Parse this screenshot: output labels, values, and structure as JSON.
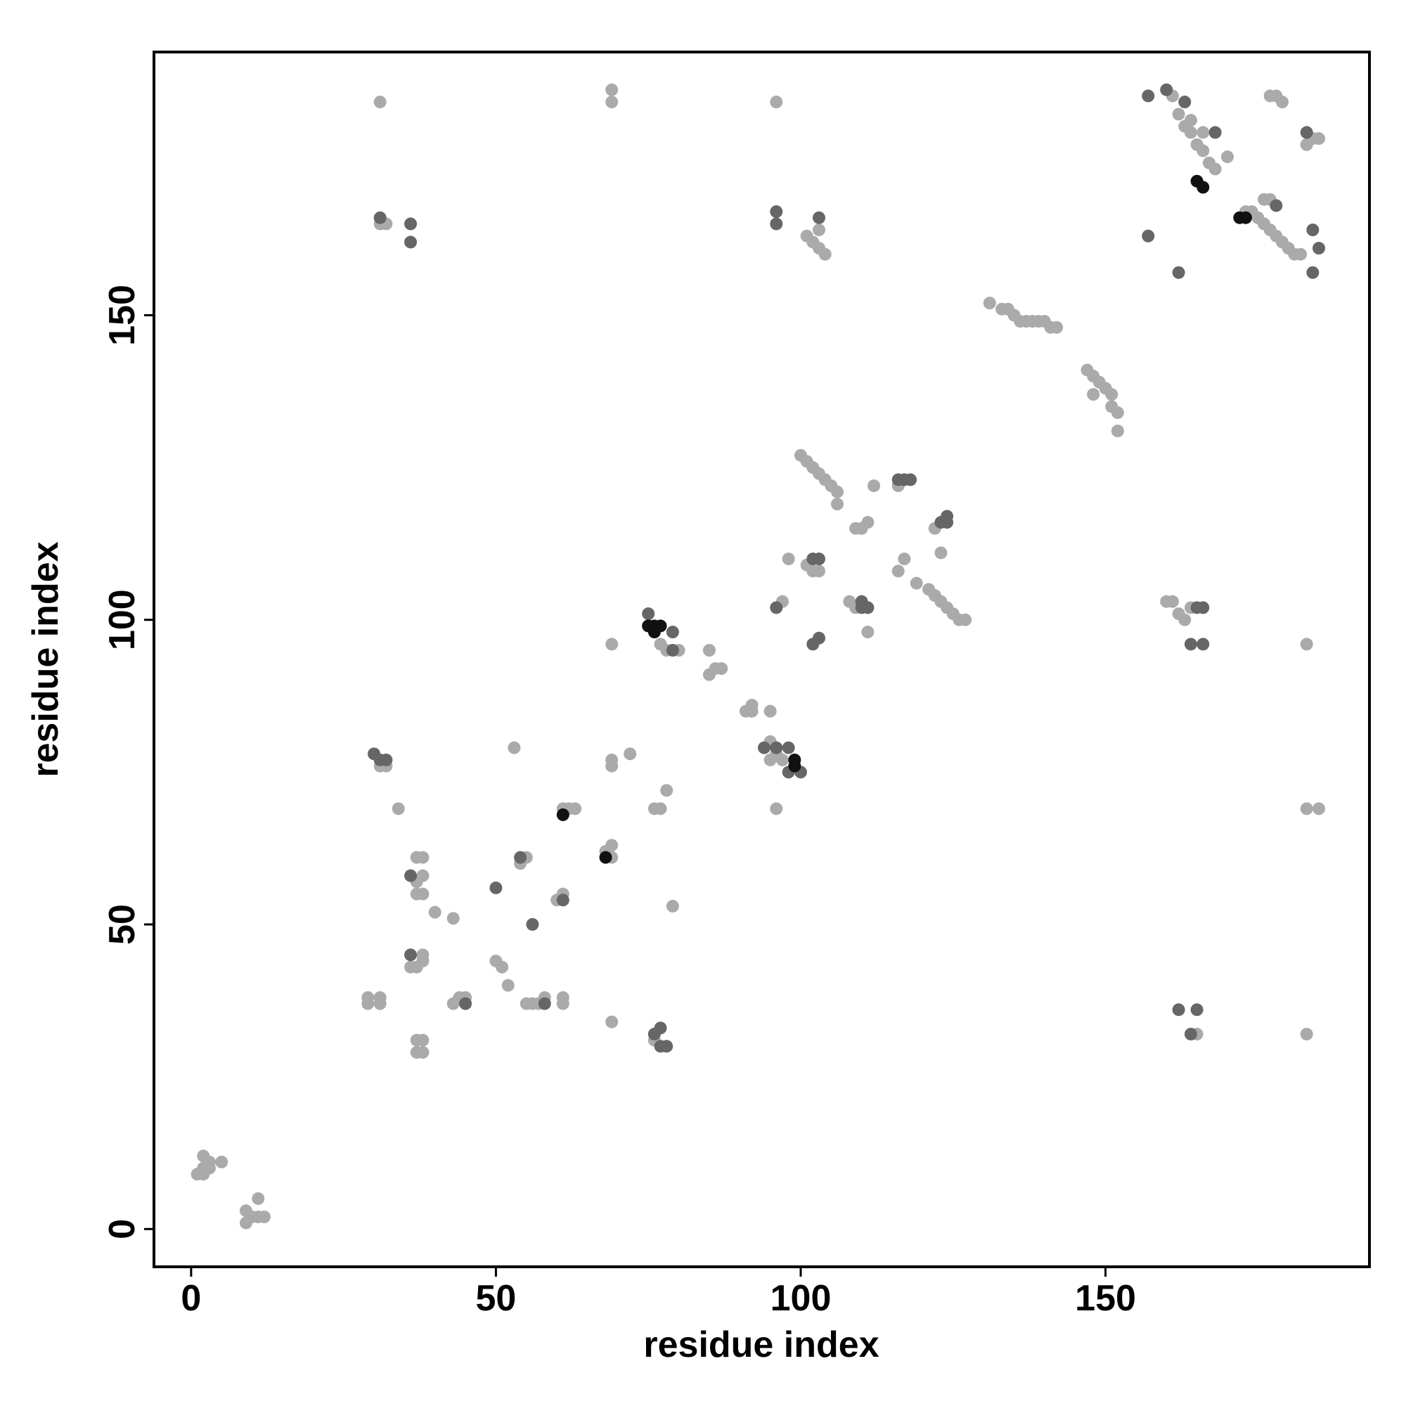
{
  "chart_data": {
    "type": "scatter",
    "xlabel": "residue index",
    "ylabel": "residue index",
    "xlim": [
      -6.1,
      193.3
    ],
    "ylim": [
      -6.2,
      193.2
    ],
    "xticks": [
      0,
      50,
      100,
      150
    ],
    "yticks": [
      0,
      50,
      100,
      150
    ],
    "series": [
      {
        "color": "#aaaaaa",
        "x": [
          1,
          2,
          3,
          2,
          3,
          5,
          2,
          9,
          10,
          11,
          12,
          11,
          9,
          29,
          29,
          31,
          31,
          37,
          38,
          37,
          38,
          37,
          38,
          38,
          36,
          37,
          38,
          37,
          38,
          37,
          38,
          34,
          40,
          43,
          43,
          44,
          45,
          50,
          51,
          52,
          55,
          56,
          57,
          58,
          61,
          61,
          54,
          55,
          60,
          61,
          61,
          62,
          63,
          53,
          69,
          68,
          69,
          69,
          69,
          69,
          72,
          76,
          77,
          78,
          79,
          76,
          76,
          69,
          69,
          69,
          31,
          31,
          32,
          31,
          32,
          77,
          78,
          80,
          85,
          85,
          86,
          87,
          91,
          92,
          92,
          95,
          95,
          96,
          95,
          97,
          96,
          96,
          97,
          98,
          101,
          102,
          103,
          104,
          103,
          100,
          101,
          102,
          103,
          104,
          105,
          106,
          106,
          101,
          102,
          103,
          108,
          109,
          111,
          112,
          109,
          110,
          111,
          116,
          117,
          116,
          119,
          121,
          122,
          123,
          124,
          125,
          126,
          127,
          122,
          123,
          131,
          133,
          134,
          135,
          136,
          137,
          138,
          139,
          140,
          141,
          142,
          147,
          148,
          149,
          150,
          151,
          151,
          152,
          152,
          148,
          160,
          161,
          162,
          163,
          164,
          161,
          162,
          163,
          164,
          165,
          166,
          167,
          168,
          170,
          164,
          166,
          173,
          174,
          175,
          176,
          177,
          178,
          179,
          180,
          181,
          182,
          176,
          177,
          177,
          178,
          179,
          184,
          185,
          183,
          183,
          183,
          185,
          183,
          165
        ],
        "values": [
          9,
          9,
          10,
          10,
          11,
          11,
          12,
          1,
          2,
          2,
          2,
          5,
          3,
          37,
          38,
          37,
          38,
          29,
          29,
          31,
          31,
          43,
          44,
          45,
          43,
          55,
          55,
          57,
          58,
          61,
          61,
          69,
          52,
          51,
          37,
          38,
          38,
          44,
          43,
          40,
          37,
          37,
          37,
          38,
          37,
          38,
          60,
          61,
          54,
          55,
          69,
          69,
          69,
          79,
          34,
          62,
          63,
          61,
          76,
          77,
          78,
          69,
          69,
          72,
          53,
          32,
          31,
          96,
          185,
          187,
          185,
          165,
          165,
          76,
          76,
          96,
          95,
          95,
          91,
          95,
          92,
          92,
          85,
          85,
          86,
          85,
          80,
          78,
          77,
          77,
          69,
          185,
          103,
          110,
          163,
          162,
          161,
          160,
          164,
          127,
          126,
          125,
          124,
          123,
          122,
          121,
          119,
          109,
          108,
          108,
          103,
          102,
          98,
          122,
          115,
          115,
          116,
          108,
          110,
          122,
          106,
          105,
          104,
          103,
          102,
          101,
          100,
          100,
          115,
          111,
          152,
          151,
          151,
          150,
          149,
          149,
          149,
          149,
          149,
          148,
          148,
          141,
          140,
          139,
          138,
          137,
          135,
          134,
          131,
          137,
          103,
          103,
          101,
          100,
          102,
          186,
          183,
          181,
          180,
          178,
          177,
          175,
          174,
          176,
          182,
          180,
          167,
          167,
          166,
          165,
          164,
          163,
          162,
          161,
          160,
          160,
          169,
          169,
          186,
          186,
          185,
          179,
          179,
          178,
          96,
          69,
          69,
          32,
          32
        ]
      },
      {
        "color": "#666666",
        "x": [
          30,
          31,
          32,
          36,
          36,
          31,
          36,
          36,
          50,
          56,
          54,
          58,
          61,
          45,
          77,
          78,
          76,
          77,
          75,
          75,
          79,
          79,
          94,
          96,
          98,
          98,
          100,
          96,
          102,
          103,
          96,
          96,
          102,
          103,
          103,
          110,
          111,
          110,
          116,
          117,
          118,
          124,
          124,
          123,
          157,
          160,
          163,
          168,
          157,
          162,
          178,
          184,
          185,
          184,
          183,
          162,
          165,
          164,
          166,
          165,
          164,
          166
        ],
        "values": [
          78,
          77,
          77,
          165,
          162,
          166,
          58,
          45,
          56,
          50,
          61,
          37,
          54,
          37,
          30,
          30,
          32,
          33,
          101,
          99,
          98,
          95,
          79,
          79,
          79,
          75,
          75,
          102,
          96,
          97,
          167,
          165,
          110,
          110,
          166,
          102,
          102,
          103,
          123,
          123,
          123,
          117,
          116,
          116,
          186,
          187,
          185,
          180,
          163,
          157,
          168,
          164,
          161,
          157,
          180,
          36,
          36,
          32,
          102,
          102,
          96,
          96
        ]
      },
      {
        "color": "#111111",
        "x": [
          75,
          76,
          77,
          76,
          99,
          99,
          61,
          68,
          172,
          173,
          165,
          166
        ],
        "values": [
          99,
          99,
          99,
          98,
          77,
          76,
          68,
          61,
          166,
          166,
          172,
          171
        ]
      }
    ]
  }
}
